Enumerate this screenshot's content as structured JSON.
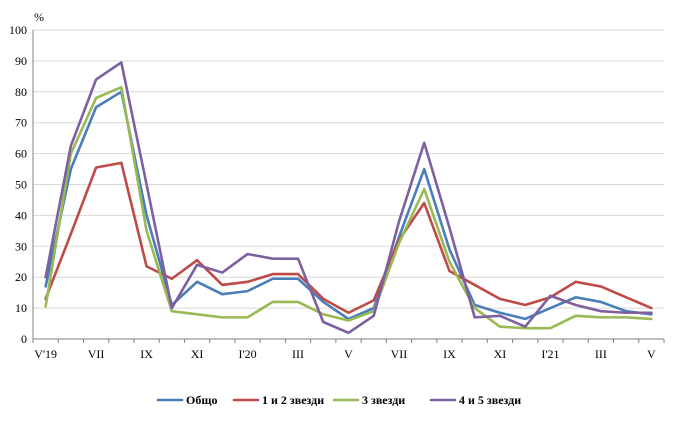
{
  "chart_data": {
    "type": "line",
    "y_unit": "%",
    "ylim": [
      0,
      100
    ],
    "yticks": [
      0,
      10,
      20,
      30,
      40,
      50,
      60,
      70,
      80,
      90,
      100
    ],
    "x": [
      "V'19",
      "VI",
      "VII",
      "VIII",
      "IX",
      "X",
      "XI",
      "XII",
      "I'20",
      "II",
      "III",
      "IV",
      "V",
      "VI",
      "VII",
      "VIII",
      "IX",
      "X",
      "XI",
      "XII",
      "I'21",
      "II",
      "III",
      "IV",
      "V"
    ],
    "xtick_labels": [
      "V'19",
      "",
      "VII",
      "",
      "IX",
      "",
      "XI",
      "",
      "I'20",
      "",
      "III",
      "",
      "V",
      "",
      "VII",
      "",
      "IX",
      "",
      "XI",
      "",
      "I'21",
      "",
      "III",
      "",
      "V"
    ],
    "grid": true,
    "legend": "bottom",
    "series": [
      {
        "name": "Общо",
        "color": "#4a7ebb",
        "values": [
          17,
          55,
          75,
          80,
          40,
          11,
          18.5,
          14.5,
          15.5,
          19.5,
          19.5,
          12,
          6.5,
          10,
          33,
          55,
          29,
          11,
          8.5,
          6.5,
          10,
          13.5,
          12,
          9,
          8
        ]
      },
      {
        "name": "1 и 2 звезди",
        "color": "#be4b48",
        "values": [
          13,
          34,
          55.5,
          57,
          23.5,
          19.5,
          25.5,
          17.5,
          18.5,
          21,
          21,
          13,
          8.5,
          12.5,
          32,
          44,
          22,
          17.5,
          13,
          11,
          13.5,
          18.5,
          17,
          13.5,
          10
        ]
      },
      {
        "name": "3 звезди",
        "color": "#98b954",
        "values": [
          10.5,
          60,
          78,
          81.5,
          35,
          9,
          8,
          7,
          7,
          12,
          12,
          8,
          6,
          9,
          31,
          48.5,
          25,
          10,
          4,
          3.5,
          3.5,
          7.5,
          7,
          7,
          6.5
        ]
      },
      {
        "name": "4 и 5 звезди",
        "color": "#7d60a0",
        "values": [
          20,
          62.5,
          84,
          89.5,
          50,
          10,
          24,
          21.5,
          27.5,
          26,
          26,
          5.5,
          2,
          7.5,
          38,
          63.5,
          36,
          7,
          7.5,
          4,
          14,
          11,
          9,
          8.5,
          8.5
        ]
      }
    ]
  }
}
